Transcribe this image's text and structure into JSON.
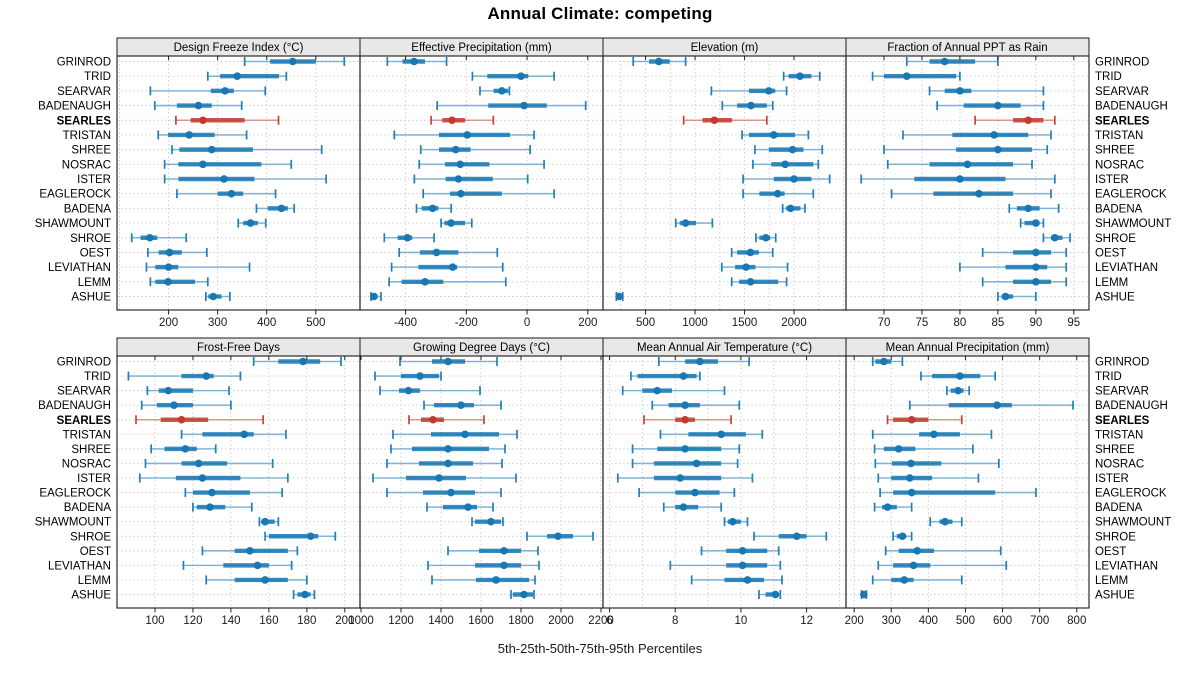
{
  "title": "Annual Climate: competing",
  "caption": "5th-25th-50th-75th-95th Percentiles",
  "colors": {
    "series_blue": "#1878b4",
    "highlight_red": "#c23b2e",
    "grid": "#c9cdd1",
    "strip_bg": "#e8e8e8",
    "border": "#1a1a1a",
    "tick_text": "#1a1a1a"
  },
  "chart_data": {
    "type": "dotplot-percentile-intervals",
    "percentile_labels": [
      "5th",
      "25th",
      "50th",
      "75th",
      "95th"
    ],
    "highlight_site": "SEARLES",
    "sites": [
      "GRINROD",
      "TRID",
      "SEARVAR",
      "BADENAUGH",
      "SEARLES",
      "TRISTAN",
      "SHREE",
      "NOSRAC",
      "ISTER",
      "EAGLEROCK",
      "BADENA",
      "SHAWMOUNT",
      "SHROE",
      "OEST",
      "LEVIATHAN",
      "LEMM",
      "ASHUE"
    ],
    "panels": [
      {
        "title": "Design Freeze Index (°C)",
        "grid_row": 0,
        "grid_col": 0,
        "xlim": [
          95,
          590
        ],
        "ticks": [
          200,
          300,
          400,
          500
        ],
        "gridlines": [
          100,
          200,
          300,
          400,
          500
        ],
        "values": [
          [
            355,
            407,
            453,
            500,
            558
          ],
          [
            280,
            305,
            340,
            425,
            440
          ],
          [
            163,
            286,
            315,
            333,
            397
          ],
          [
            172,
            217,
            261,
            288,
            349
          ],
          [
            215,
            245,
            270,
            355,
            424
          ],
          [
            179,
            199,
            242,
            294,
            359
          ],
          [
            207,
            222,
            288,
            372,
            512
          ],
          [
            192,
            220,
            270,
            389,
            450
          ],
          [
            192,
            220,
            313,
            375,
            521
          ],
          [
            217,
            300,
            328,
            352,
            418
          ],
          [
            379,
            402,
            430,
            443,
            456
          ],
          [
            342,
            352,
            367,
            382,
            398
          ],
          [
            125,
            143,
            162,
            177,
            236
          ],
          [
            158,
            180,
            202,
            227,
            278
          ],
          [
            155,
            173,
            200,
            220,
            365
          ],
          [
            163,
            173,
            199,
            254,
            280
          ],
          [
            276,
            281,
            291,
            308,
            325
          ]
        ]
      },
      {
        "title": "Effective Precipitation (mm)",
        "grid_row": 0,
        "grid_col": 1,
        "xlim": [
          -550,
          250
        ],
        "ticks": [
          -400,
          -200,
          0,
          200
        ],
        "gridlines": [
          -400,
          -200,
          0,
          200
        ],
        "values": [
          [
            -460,
            -410,
            -372,
            -336,
            -265
          ],
          [
            -180,
            -131,
            -20,
            4,
            89
          ],
          [
            -155,
            -110,
            -83,
            -62,
            -58
          ],
          [
            -296,
            -128,
            -10,
            65,
            193
          ],
          [
            -316,
            -279,
            -247,
            -204,
            -111
          ],
          [
            -437,
            -290,
            -197,
            -56,
            23
          ],
          [
            -350,
            -290,
            -235,
            -186,
            10
          ],
          [
            -355,
            -270,
            -220,
            -124,
            56
          ],
          [
            -371,
            -268,
            -226,
            -113,
            2
          ],
          [
            -342,
            -254,
            -218,
            -83,
            89
          ],
          [
            -364,
            -347,
            -311,
            -292,
            -250
          ],
          [
            -283,
            -272,
            -250,
            -204,
            -182
          ],
          [
            -470,
            -426,
            -394,
            -378,
            -306
          ],
          [
            -421,
            -353,
            -298,
            -226,
            -98
          ],
          [
            -446,
            -358,
            -245,
            -230,
            -80
          ],
          [
            -454,
            -413,
            -336,
            -276,
            -70
          ],
          [
            -514,
            -511,
            -504,
            -492,
            -481
          ]
        ]
      },
      {
        "title": "Elevation (m)",
        "grid_row": 0,
        "grid_col": 2,
        "xlim": [
          70,
          2525
        ],
        "ticks": [
          500,
          1000,
          1500,
          2000
        ],
        "gridlines": [
          250,
          500,
          750,
          1000,
          1250,
          1500,
          1750,
          2000,
          2250,
          2500
        ],
        "values": [
          [
            375,
            535,
            635,
            745,
            905
          ],
          [
            1895,
            1945,
            2060,
            2175,
            2260
          ],
          [
            1165,
            1545,
            1745,
            1810,
            1925
          ],
          [
            1275,
            1425,
            1565,
            1725,
            1785
          ],
          [
            885,
            1075,
            1195,
            1375,
            1725
          ],
          [
            1475,
            1545,
            1795,
            2010,
            2145
          ],
          [
            1605,
            1745,
            1985,
            2095,
            2285
          ],
          [
            1585,
            1770,
            1910,
            2195,
            2245
          ],
          [
            1485,
            1795,
            2000,
            2175,
            2360
          ],
          [
            1485,
            1650,
            1835,
            1905,
            2195
          ],
          [
            1885,
            1920,
            1965,
            2065,
            2110
          ],
          [
            805,
            845,
            905,
            1010,
            1175
          ],
          [
            1615,
            1650,
            1715,
            1760,
            1815
          ],
          [
            1370,
            1425,
            1560,
            1645,
            1785
          ],
          [
            1270,
            1405,
            1515,
            1610,
            1935
          ],
          [
            1370,
            1445,
            1560,
            1840,
            1925
          ],
          [
            205,
            215,
            233,
            250,
            270
          ]
        ]
      },
      {
        "title": "Fraction of Annual PPT as Rain",
        "grid_row": 0,
        "grid_col": 3,
        "xlim": [
          65,
          97
        ],
        "ticks": [
          70,
          75,
          80,
          85,
          90,
          95
        ],
        "gridlines": [
          70,
          75,
          80,
          85,
          90,
          95
        ],
        "values": [
          [
            73,
            76,
            78,
            82,
            85
          ],
          [
            68.5,
            70,
            73,
            79.5,
            80
          ],
          [
            76,
            78,
            80,
            81.5,
            91
          ],
          [
            77,
            80.5,
            85,
            88,
            91
          ],
          [
            82,
            87,
            89,
            91,
            92.5
          ],
          [
            72.5,
            79,
            84.5,
            89,
            92
          ],
          [
            70,
            79.5,
            85,
            89.5,
            91.5
          ],
          [
            70.5,
            76,
            81,
            87,
            89.5
          ],
          [
            67,
            74,
            80,
            86,
            92.5
          ],
          [
            71,
            76.5,
            82.5,
            87,
            92
          ],
          [
            86.5,
            87.5,
            89,
            90.5,
            93
          ],
          [
            88,
            88.5,
            90,
            90.5,
            91
          ],
          [
            91,
            92,
            92.5,
            93.5,
            94.5
          ],
          [
            83,
            87,
            90,
            92,
            94
          ],
          [
            80,
            86,
            90,
            91.5,
            94
          ],
          [
            83,
            87,
            90,
            92,
            94
          ],
          [
            85,
            85.5,
            86,
            87,
            90
          ]
        ]
      },
      {
        "title": "Frost-Free Days",
        "grid_row": 1,
        "grid_col": 0,
        "xlim": [
          80,
          208
        ],
        "ticks": [
          100,
          120,
          140,
          160,
          180,
          200
        ],
        "gridlines": [
          100,
          120,
          140,
          160,
          180,
          200
        ],
        "values": [
          [
            152,
            165,
            178,
            187,
            198
          ],
          [
            86,
            114,
            127,
            131,
            145
          ],
          [
            96,
            102,
            107,
            120,
            139
          ],
          [
            93,
            101,
            110,
            120,
            140
          ],
          [
            90,
            103,
            114,
            128,
            157
          ],
          [
            114,
            125,
            147,
            152,
            169
          ],
          [
            98,
            105,
            116,
            122,
            132
          ],
          [
            95,
            114,
            123,
            138,
            162
          ],
          [
            92,
            111,
            125,
            145,
            170
          ],
          [
            116,
            120,
            130,
            150,
            167
          ],
          [
            120,
            122,
            129,
            137,
            151
          ],
          [
            155,
            156,
            158,
            163,
            165
          ],
          [
            158,
            160,
            182,
            186,
            195
          ],
          [
            125,
            142,
            150,
            170,
            175
          ],
          [
            115,
            136,
            154,
            160,
            172
          ],
          [
            127,
            142,
            158,
            170,
            180
          ],
          [
            173,
            175,
            179,
            182,
            184
          ]
        ]
      },
      {
        "title": "Growing Degree Days (°C)",
        "grid_row": 1,
        "grid_col": 1,
        "xlim": [
          995,
          2210
        ],
        "ticks": [
          1000,
          1200,
          1400,
          1600,
          1800,
          2000,
          2200
        ],
        "gridlines": [
          1000,
          1200,
          1400,
          1600,
          1800,
          2000,
          2200
        ],
        "values": [
          [
            1195,
            1355,
            1435,
            1520,
            1680
          ],
          [
            1070,
            1200,
            1295,
            1390,
            1400
          ],
          [
            1095,
            1190,
            1237,
            1295,
            1595
          ],
          [
            1315,
            1365,
            1500,
            1565,
            1700
          ],
          [
            1240,
            1300,
            1360,
            1415,
            1615
          ],
          [
            1160,
            1350,
            1520,
            1690,
            1780
          ],
          [
            1150,
            1255,
            1435,
            1640,
            1720
          ],
          [
            1130,
            1290,
            1435,
            1560,
            1705
          ],
          [
            1060,
            1225,
            1390,
            1525,
            1775
          ],
          [
            1130,
            1310,
            1450,
            1570,
            1700
          ],
          [
            1330,
            1410,
            1535,
            1580,
            1660
          ],
          [
            1555,
            1570,
            1650,
            1700,
            1710
          ],
          [
            1830,
            1930,
            1985,
            2060,
            2160
          ],
          [
            1435,
            1590,
            1715,
            1800,
            1885
          ],
          [
            1335,
            1570,
            1715,
            1800,
            1890
          ],
          [
            1355,
            1575,
            1675,
            1840,
            1870
          ],
          [
            1750,
            1760,
            1815,
            1860,
            1865
          ]
        ]
      },
      {
        "title": "Mean Annual Air Temperature (°C)",
        "grid_row": 1,
        "grid_col": 2,
        "xlim": [
          5.8,
          13.2
        ],
        "ticks": [
          6,
          8,
          10,
          12
        ],
        "gridlines": [
          6,
          7,
          8,
          9,
          10,
          11,
          12,
          13
        ],
        "values": [
          [
            7.5,
            8.3,
            8.75,
            9.3,
            10.25
          ],
          [
            6.65,
            6.85,
            8.25,
            8.65,
            8.75
          ],
          [
            6.4,
            7.0,
            7.45,
            7.9,
            9.5
          ],
          [
            7.3,
            7.8,
            8.3,
            8.75,
            9.95
          ],
          [
            7.05,
            8.0,
            8.3,
            8.6,
            9.7
          ],
          [
            7.55,
            8.4,
            9.4,
            10.15,
            10.65
          ],
          [
            6.7,
            7.45,
            8.3,
            9.4,
            9.95
          ],
          [
            6.7,
            7.35,
            8.65,
            9.4,
            9.9
          ],
          [
            6.25,
            7.35,
            8.15,
            9.4,
            10.35
          ],
          [
            6.9,
            8.0,
            8.6,
            9.35,
            9.8
          ],
          [
            7.65,
            8.0,
            8.25,
            8.7,
            9.4
          ],
          [
            9.5,
            9.6,
            9.75,
            10.0,
            10.2
          ],
          [
            10.4,
            11.15,
            11.7,
            12.0,
            12.6
          ],
          [
            8.8,
            9.55,
            10.05,
            10.8,
            11.15
          ],
          [
            7.85,
            9.55,
            10.05,
            10.8,
            11.2
          ],
          [
            8.5,
            9.5,
            10.2,
            10.7,
            11.25
          ],
          [
            10.55,
            10.75,
            11.05,
            11.15,
            11.2
          ]
        ]
      },
      {
        "title": "Mean Annual Precipitation (mm)",
        "grid_row": 1,
        "grid_col": 3,
        "xlim": [
          178,
          833
        ],
        "ticks": [
          200,
          300,
          400,
          500,
          600,
          700,
          800
        ],
        "gridlines": [
          200,
          300,
          400,
          500,
          600,
          700,
          800
        ],
        "values": [
          [
            250,
            257,
            280,
            300,
            330
          ],
          [
            380,
            410,
            485,
            540,
            580
          ],
          [
            450,
            460,
            480,
            495,
            510
          ],
          [
            350,
            455,
            585,
            625,
            790
          ],
          [
            290,
            305,
            355,
            400,
            490
          ],
          [
            250,
            375,
            415,
            485,
            570
          ],
          [
            255,
            280,
            320,
            365,
            520
          ],
          [
            257,
            302,
            353,
            435,
            590
          ],
          [
            265,
            300,
            350,
            410,
            535
          ],
          [
            270,
            305,
            355,
            580,
            690
          ],
          [
            255,
            275,
            290,
            315,
            355
          ],
          [
            405,
            430,
            445,
            465,
            490
          ],
          [
            305,
            315,
            330,
            340,
            355
          ],
          [
            285,
            320,
            370,
            415,
            595
          ],
          [
            265,
            305,
            360,
            405,
            610
          ],
          [
            250,
            300,
            335,
            360,
            490
          ],
          [
            220,
            222,
            226,
            230,
            233
          ]
        ]
      }
    ]
  }
}
